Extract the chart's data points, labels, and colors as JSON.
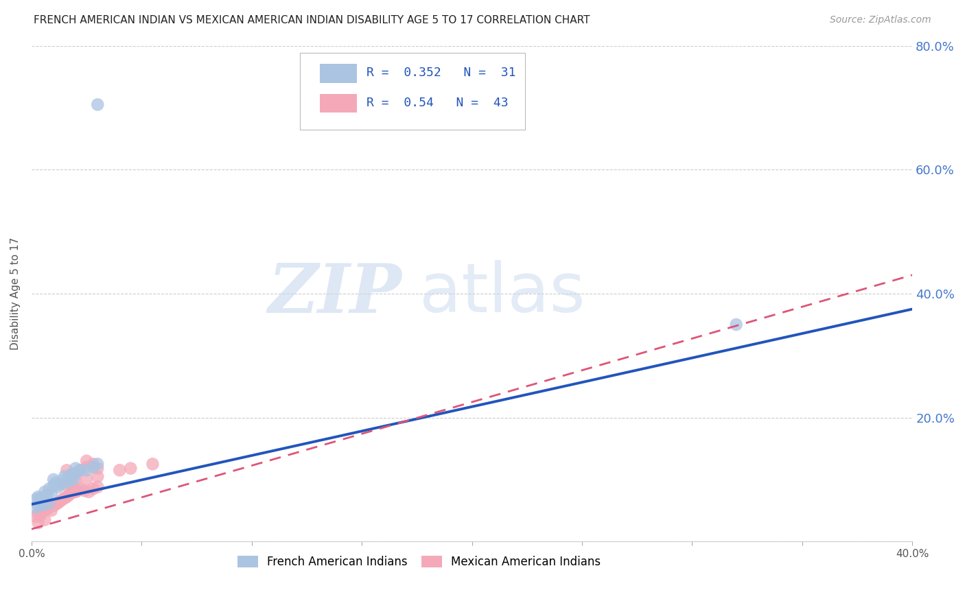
{
  "title": "FRENCH AMERICAN INDIAN VS MEXICAN AMERICAN INDIAN DISABILITY AGE 5 TO 17 CORRELATION CHART",
  "source": "Source: ZipAtlas.com",
  "ylabel": "Disability Age 5 to 17",
  "xlim": [
    0.0,
    0.4
  ],
  "ylim": [
    0.0,
    0.8
  ],
  "blue_R": 0.352,
  "blue_N": 31,
  "pink_R": 0.54,
  "pink_N": 43,
  "blue_color": "#aac4e2",
  "pink_color": "#f4a8b8",
  "blue_line_color": "#2255bb",
  "pink_line_color": "#dd5577",
  "blue_line_x0": 0.0,
  "blue_line_y0": 0.06,
  "blue_line_x1": 0.4,
  "blue_line_y1": 0.375,
  "pink_line_x0": 0.0,
  "pink_line_y0": 0.02,
  "pink_line_x1": 0.4,
  "pink_line_y1": 0.43,
  "blue_scatter": [
    [
      0.002,
      0.068
    ],
    [
      0.003,
      0.072
    ],
    [
      0.004,
      0.07
    ],
    [
      0.005,
      0.065
    ],
    [
      0.006,
      0.08
    ],
    [
      0.007,
      0.075
    ],
    [
      0.008,
      0.085
    ],
    [
      0.009,
      0.078
    ],
    [
      0.01,
      0.09
    ],
    [
      0.01,
      0.1
    ],
    [
      0.011,
      0.095
    ],
    [
      0.012,
      0.088
    ],
    [
      0.013,
      0.092
    ],
    [
      0.014,
      0.098
    ],
    [
      0.015,
      0.105
    ],
    [
      0.016,
      0.095
    ],
    [
      0.017,
      0.102
    ],
    [
      0.018,
      0.108
    ],
    [
      0.019,
      0.1
    ],
    [
      0.02,
      0.11
    ],
    [
      0.02,
      0.118
    ],
    [
      0.022,
      0.115
    ],
    [
      0.025,
      0.115
    ],
    [
      0.028,
      0.12
    ],
    [
      0.03,
      0.125
    ],
    [
      0.002,
      0.055
    ],
    [
      0.003,
      0.06
    ],
    [
      0.005,
      0.058
    ],
    [
      0.008,
      0.062
    ],
    [
      0.32,
      0.35
    ],
    [
      0.03,
      0.705
    ]
  ],
  "pink_scatter": [
    [
      0.002,
      0.04
    ],
    [
      0.003,
      0.045
    ],
    [
      0.004,
      0.042
    ],
    [
      0.005,
      0.048
    ],
    [
      0.006,
      0.05
    ],
    [
      0.007,
      0.052
    ],
    [
      0.008,
      0.055
    ],
    [
      0.009,
      0.05
    ],
    [
      0.01,
      0.058
    ],
    [
      0.011,
      0.06
    ],
    [
      0.012,
      0.062
    ],
    [
      0.013,
      0.065
    ],
    [
      0.014,
      0.068
    ],
    [
      0.015,
      0.07
    ],
    [
      0.016,
      0.072
    ],
    [
      0.017,
      0.075
    ],
    [
      0.018,
      0.078
    ],
    [
      0.019,
      0.08
    ],
    [
      0.02,
      0.08
    ],
    [
      0.021,
      0.082
    ],
    [
      0.022,
      0.085
    ],
    [
      0.024,
      0.082
    ],
    [
      0.026,
      0.08
    ],
    [
      0.028,
      0.085
    ],
    [
      0.03,
      0.088
    ],
    [
      0.015,
      0.092
    ],
    [
      0.018,
      0.095
    ],
    [
      0.02,
      0.098
    ],
    [
      0.025,
      0.1
    ],
    [
      0.03,
      0.105
    ],
    [
      0.02,
      0.11
    ],
    [
      0.025,
      0.12
    ],
    [
      0.016,
      0.115
    ],
    [
      0.018,
      0.108
    ],
    [
      0.022,
      0.115
    ],
    [
      0.03,
      0.118
    ],
    [
      0.025,
      0.13
    ],
    [
      0.028,
      0.125
    ],
    [
      0.04,
      0.115
    ],
    [
      0.045,
      0.118
    ],
    [
      0.055,
      0.125
    ],
    [
      0.006,
      0.035
    ],
    [
      0.003,
      0.03
    ]
  ],
  "watermark_zip": "ZIP",
  "watermark_atlas": "atlas",
  "background_color": "#ffffff",
  "grid_color": "#cccccc"
}
